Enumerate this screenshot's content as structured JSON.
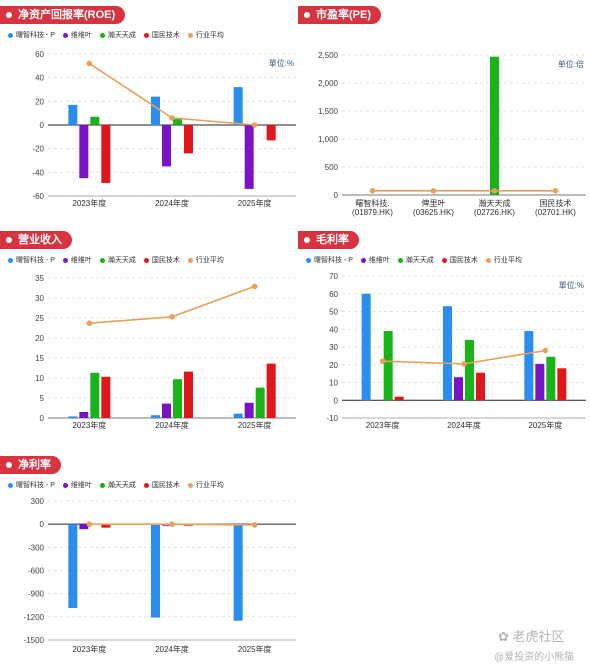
{
  "legend": [
    {
      "name": "曙智科技 - P",
      "color": "#2a8ef0"
    },
    {
      "name": "维维叶",
      "color": "#7a13c8"
    },
    {
      "name": "瀚天天成",
      "color": "#18b41a"
    },
    {
      "name": "国民技术",
      "color": "#e0171a"
    },
    {
      "name": "行业平均",
      "color": "#e9a05a"
    }
  ],
  "watermark": {
    "brand": "老虎社区",
    "user": "@爱投资的小熊猫"
  },
  "chart_data": [
    {
      "type": "bar",
      "title": "净资产回报率(ROE)",
      "unit": "單位:%",
      "categories": [
        "2023年度",
        "2024年度",
        "2025年度"
      ],
      "ylim": [
        -60,
        60
      ],
      "yticks": [
        -60,
        -40,
        -20,
        0,
        20,
        40,
        60
      ],
      "series": [
        {
          "name": "曙智科技 - P",
          "values": [
            17,
            24,
            32
          ]
        },
        {
          "name": "维维叶",
          "values": [
            -45,
            -35,
            -54
          ]
        },
        {
          "name": "瀚天天成",
          "values": [
            7,
            5,
            0
          ]
        },
        {
          "name": "国民技术",
          "values": [
            -49,
            -24,
            -13
          ]
        }
      ],
      "line": {
        "name": "行业平均",
        "values": [
          52,
          6,
          0
        ]
      }
    },
    {
      "type": "bar",
      "title": "市盈率(PE)",
      "unit": "单位:倍",
      "categories": [
        "曙智科技.\n(01879.HK)",
        "俾里叶\n(03625.HK)",
        "瀚天天成\n(02726.HK)",
        "国民技术\n(02701.HK)"
      ],
      "ylim": [
        0,
        2500
      ],
      "yticks": [
        0,
        500,
        "1,000",
        "1,500",
        "2,000",
        "2,500"
      ],
      "series": [
        {
          "name": "瀚天天成",
          "values": [
            0,
            0,
            2470,
            0
          ]
        }
      ],
      "line": {
        "name": "行业平均",
        "values": [
          75,
          75,
          75,
          75
        ]
      }
    },
    {
      "type": "bar",
      "title": "营业收入",
      "unit": "",
      "categories": [
        "2023年度",
        "2024年度",
        "2025年度"
      ],
      "ylim": [
        0,
        35
      ],
      "yticks": [
        0,
        5,
        10,
        15,
        20,
        25,
        30,
        35
      ],
      "series": [
        {
          "name": "曙智科技 - P",
          "values": [
            0.4,
            0.7,
            1.1
          ]
        },
        {
          "name": "维维叶",
          "values": [
            1.5,
            3.6,
            3.8
          ]
        },
        {
          "name": "瀚天天成",
          "values": [
            11.3,
            9.7,
            7.6
          ]
        },
        {
          "name": "国民技术",
          "values": [
            10.3,
            11.6,
            13.6
          ]
        }
      ],
      "line": {
        "name": "行业平均",
        "values": [
          23.7,
          25.3,
          32.9
        ]
      }
    },
    {
      "type": "bar",
      "title": "毛利率",
      "unit": "單位:%",
      "categories": [
        "2023年度",
        "2024年度",
        "2025年度"
      ],
      "ylim": [
        -10,
        70
      ],
      "yticks": [
        -10,
        0,
        10,
        20,
        30,
        40,
        50,
        60,
        70
      ],
      "series": [
        {
          "name": "曙智科技 - P",
          "values": [
            60,
            53,
            39
          ]
        },
        {
          "name": "维维叶",
          "values": [
            0,
            13,
            20.5
          ]
        },
        {
          "name": "瀚天天成",
          "values": [
            39,
            34,
            24.5
          ]
        },
        {
          "name": "国民技术",
          "values": [
            2,
            15.5,
            18
          ]
        }
      ],
      "line": {
        "name": "行业平均",
        "values": [
          22,
          20.5,
          28
        ]
      }
    },
    {
      "type": "bar",
      "title": "净利率",
      "unit": "",
      "categories": [
        "2023年度",
        "2024年度",
        "2025年度"
      ],
      "ylim": [
        -1500,
        300
      ],
      "yticks": [
        -1500,
        -1200,
        -900,
        -600,
        -300,
        0,
        300
      ],
      "series": [
        {
          "name": "曙智科技 - P",
          "values": [
            -1085,
            -1210,
            -1250
          ]
        },
        {
          "name": "维维叶",
          "values": [
            -65,
            -20,
            0
          ]
        },
        {
          "name": "瀚天天成",
          "values": [
            0,
            0,
            0
          ]
        },
        {
          "name": "国民技术",
          "values": [
            -45,
            -20,
            0
          ]
        }
      ],
      "line": {
        "name": "行业平均",
        "values": [
          0,
          0,
          -10
        ]
      }
    }
  ]
}
